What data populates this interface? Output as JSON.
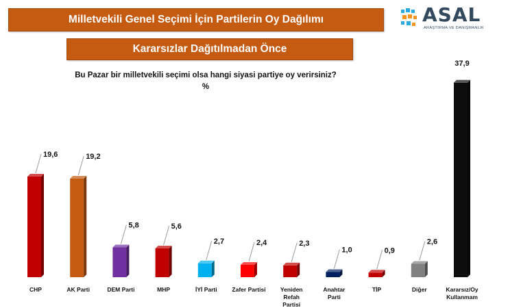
{
  "header": {
    "title": "Milletvekili Genel Seçimi İçin Partilerin Oy Dağılımı",
    "subtitle": "Kararsızlar Dağıtılmadan Önce"
  },
  "logo": {
    "name": "ASAL",
    "tagline": "ARAŞTIRMA VE DANIŞMANLIK"
  },
  "chart_data": {
    "type": "bar",
    "title": "Bu Pazar bir milletvekili seçimi olsa hangi siyasi partiye oy verirsiniz?",
    "unit": "%",
    "categories": [
      [
        "CHP"
      ],
      [
        "AK Parti"
      ],
      [
        "DEM Parti"
      ],
      [
        "MHP"
      ],
      [
        "İYİ Parti"
      ],
      [
        "Zafer Partisi"
      ],
      [
        "Yeniden",
        "Refah",
        "Partisi"
      ],
      [
        "Anahtar",
        "Parti"
      ],
      [
        "TİP"
      ],
      [
        "Diğer"
      ],
      [
        "Kararsız/Oy",
        "Kullanmam"
      ]
    ],
    "values": [
      19.6,
      19.2,
      5.8,
      5.6,
      2.7,
      2.4,
      2.3,
      1.0,
      0.9,
      2.6,
      37.9
    ],
    "value_labels": [
      "19,6",
      "19,2",
      "5,8",
      "5,6",
      "2,7",
      "2,4",
      "2,3",
      "1,0",
      "0,9",
      "2,6",
      "37,9"
    ],
    "colors": [
      "#c00000",
      "#c55a11",
      "#7030a0",
      "#c00000",
      "#00b0f0",
      "#ff0000",
      "#c00000",
      "#002060",
      "#c00000",
      "#808080",
      "#0d0d0d"
    ],
    "ylim": [
      0,
      40
    ],
    "grid": false,
    "legend": "none"
  }
}
